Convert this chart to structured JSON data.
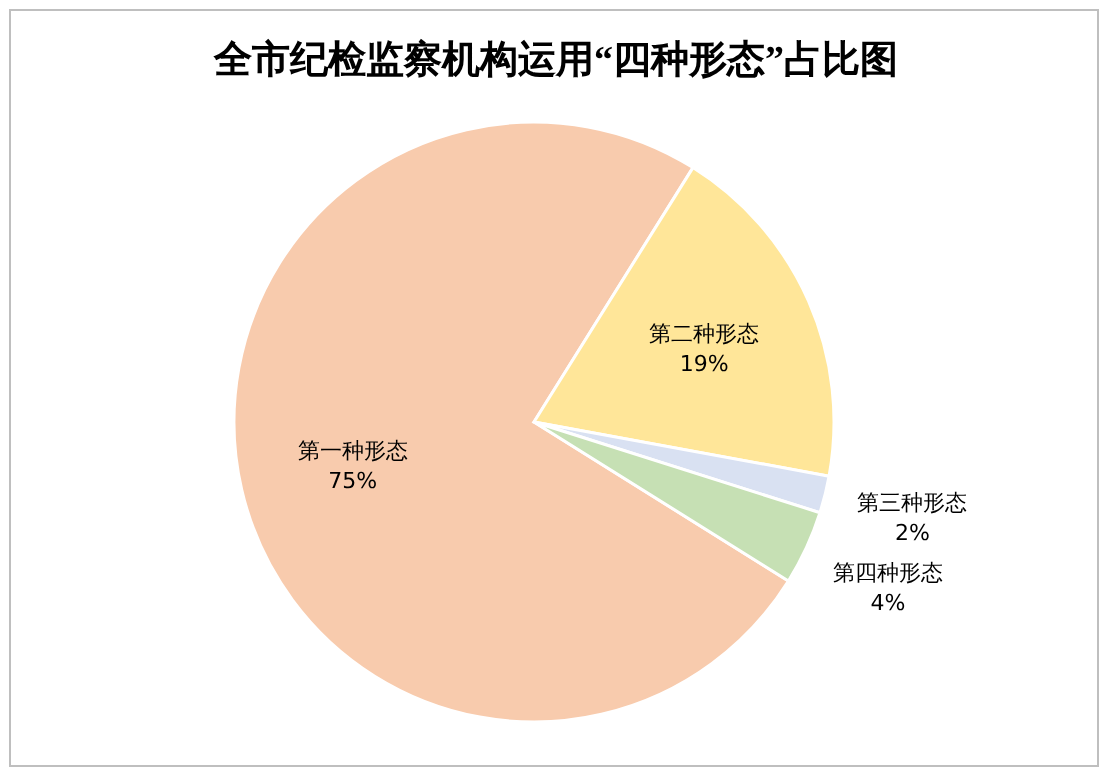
{
  "chart_data": {
    "type": "pie",
    "title": "全市纪检监察机构运用“四种形态”占比图",
    "categories": [
      "第一种形态",
      "第二种形态",
      "第三种形态",
      "第四种形态"
    ],
    "values": [
      75,
      19,
      2,
      4
    ],
    "value_labels": [
      "75%",
      "19%",
      "2%",
      "4%"
    ],
    "colors": [
      "#f8cbad",
      "#ffe699",
      "#d9e1f2",
      "#c6e0b4"
    ]
  }
}
